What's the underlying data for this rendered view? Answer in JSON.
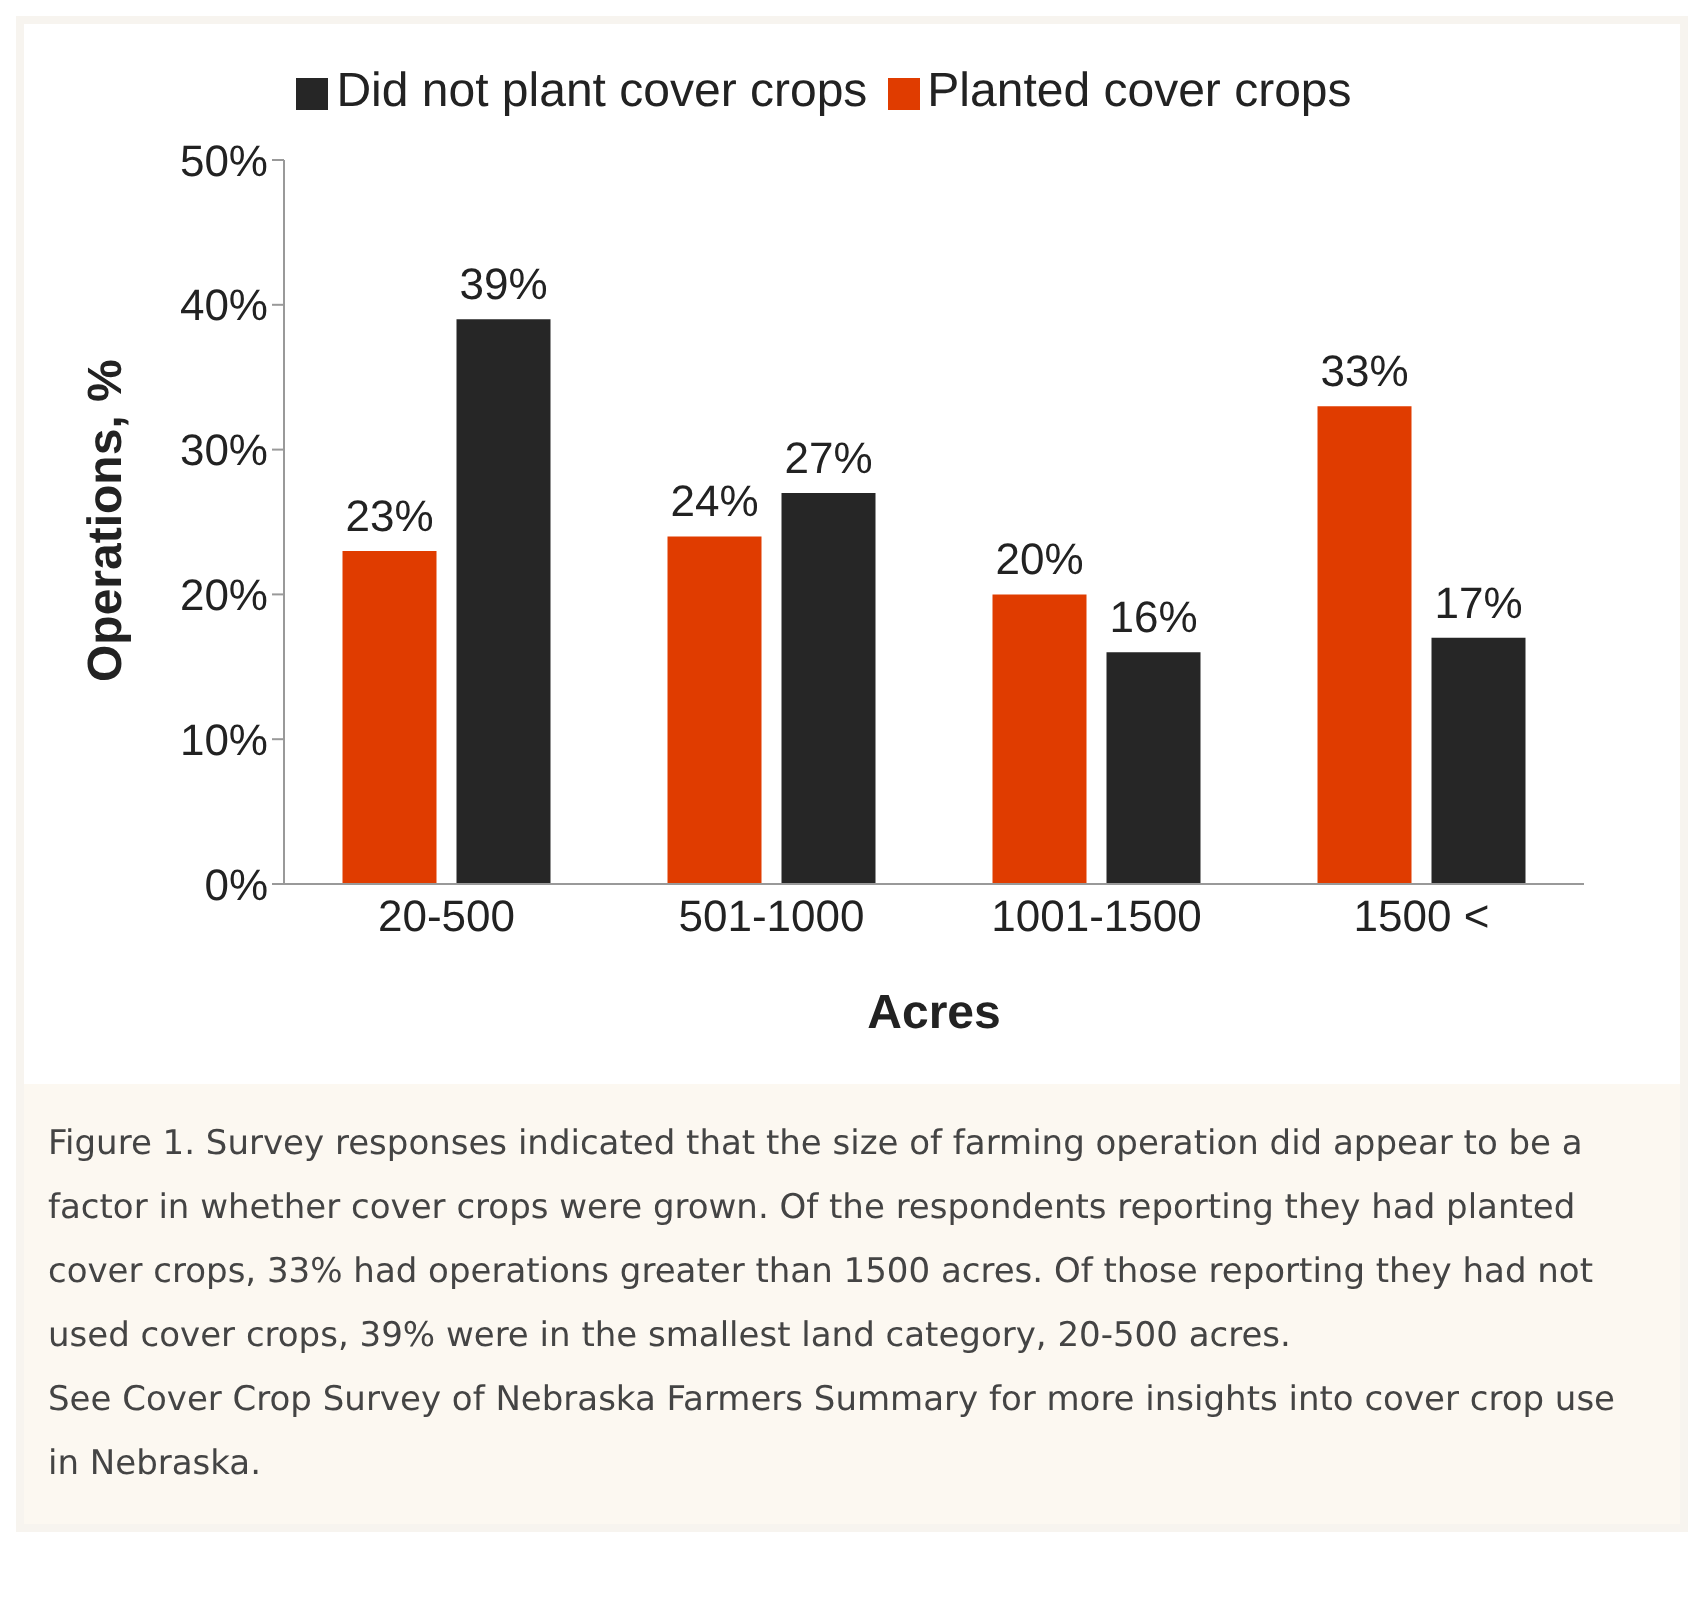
{
  "chart_data": {
    "type": "bar",
    "categories": [
      "20-500",
      "501-1000",
      "1001-1500",
      "1500 <"
    ],
    "series": [
      {
        "name": "Planted cover crops",
        "color": "#e03c00",
        "values": [
          23,
          24,
          20,
          33
        ],
        "value_labels": [
          "23%",
          "24%",
          "20%",
          "33%"
        ]
      },
      {
        "name": "Did not plant cover crops",
        "color": "#262626",
        "values": [
          39,
          27,
          16,
          17
        ],
        "value_labels": [
          "39%",
          "27%",
          "16%",
          "17%"
        ]
      }
    ],
    "xlabel": "Acres",
    "ylabel": "Operations, %",
    "ylim": [
      0,
      50
    ],
    "yticks": [
      {
        "value": 0,
        "label": "0%"
      },
      {
        "value": 10,
        "label": "10%"
      },
      {
        "value": 20,
        "label": "20%"
      },
      {
        "value": 30,
        "label": "30%"
      },
      {
        "value": 40,
        "label": "40%"
      },
      {
        "value": 50,
        "label": "50%"
      }
    ],
    "legend": "top",
    "grid": false,
    "annotations": [
      "Figure 1.  Survey responses indicated that the size of farming operation did appear to be a factor in whether cover crops were grown. Of the respondents reporting they had planted cover crops, 33% had operations greater than 1500 acres. Of those reporting they had not used cover crops, 39% were in the smallest land category, 20-500 acres.",
      "See Cover Crop Survey of Nebraska Farmers Summary for more insights into cover crop use in Nebraska."
    ]
  }
}
